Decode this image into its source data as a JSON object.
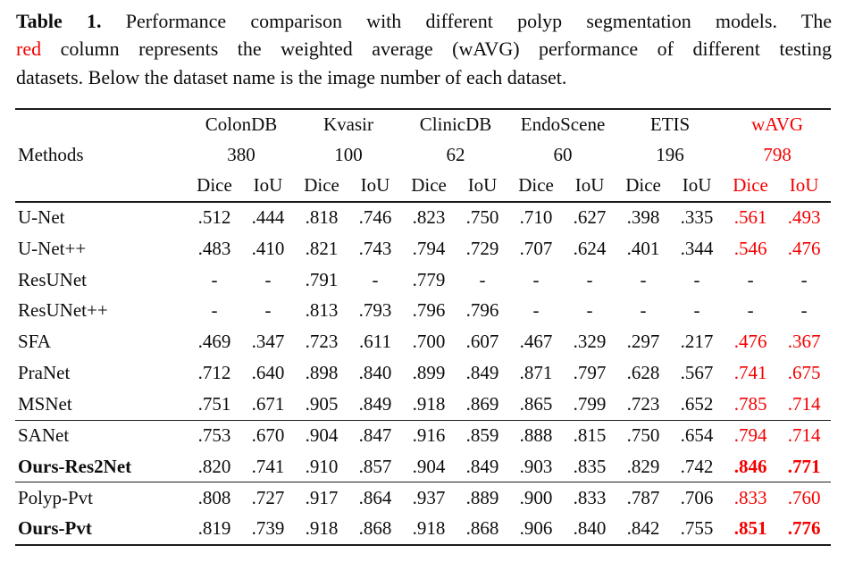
{
  "colors": {
    "accent_red": "#f40000",
    "text": "#0d0d0d"
  },
  "caption": {
    "line1_label": "Table 1.",
    "line1_rest": "Performance comparison with different polyp segmentation models. The",
    "line2_red_word": "red",
    "line2_rest": "column represents the weighted average (wAVG) performance of different testing",
    "line3": "datasets. Below the dataset name is the image number of each dataset."
  },
  "chart_data": {
    "type": "table",
    "title": "Performance comparison with different polyp segmentation models",
    "columns": [
      "Methods",
      "ColonDB Dice",
      "ColonDB IoU",
      "Kvasir Dice",
      "Kvasir IoU",
      "ClinicDB Dice",
      "ClinicDB IoU",
      "EndoScene Dice",
      "EndoScene IoU",
      "ETIS Dice",
      "ETIS IoU",
      "wAVG Dice",
      "wAVG IoU"
    ],
    "dataset_image_counts": {
      "ColonDB": 380,
      "Kvasir": 100,
      "ClinicDB": 62,
      "EndoScene": 60,
      "ETIS": 196,
      "wAVG": 798
    }
  },
  "table": {
    "methods_header": "Methods",
    "datasets": [
      {
        "name": "ColonDB",
        "count": "380",
        "red": false
      },
      {
        "name": "Kvasir",
        "count": "100",
        "red": false
      },
      {
        "name": "ClinicDB",
        "count": "62",
        "red": false
      },
      {
        "name": "EndoScene",
        "count": "60",
        "red": false
      },
      {
        "name": "ETIS",
        "count": "196",
        "red": false
      },
      {
        "name": "wAVG",
        "count": "798",
        "red": true
      }
    ],
    "subheaders": [
      "Dice",
      "IoU"
    ],
    "rows": [
      {
        "method": "U-Net",
        "bold": false,
        "rule_above": false,
        "values": [
          ".512",
          ".444",
          ".818",
          ".746",
          ".823",
          ".750",
          ".710",
          ".627",
          ".398",
          ".335",
          ".561",
          ".493"
        ]
      },
      {
        "method": "U-Net++",
        "bold": false,
        "rule_above": false,
        "values": [
          ".483",
          ".410",
          ".821",
          ".743",
          ".794",
          ".729",
          ".707",
          ".624",
          ".401",
          ".344",
          ".546",
          ".476"
        ]
      },
      {
        "method": "ResUNet",
        "bold": false,
        "rule_above": false,
        "values": [
          "-",
          "-",
          ".791",
          "-",
          ".779",
          "-",
          "-",
          "-",
          "-",
          "-",
          "-",
          "-"
        ],
        "dashes_black": true
      },
      {
        "method": "ResUNet++",
        "bold": false,
        "rule_above": false,
        "values": [
          "-",
          "-",
          ".813",
          ".793",
          ".796",
          ".796",
          "-",
          "-",
          "-",
          "-",
          "-",
          "-"
        ],
        "dashes_black": true
      },
      {
        "method": "SFA",
        "bold": false,
        "rule_above": false,
        "values": [
          ".469",
          ".347",
          ".723",
          ".611",
          ".700",
          ".607",
          ".467",
          ".329",
          ".297",
          ".217",
          ".476",
          ".367"
        ]
      },
      {
        "method": "PraNet",
        "bold": false,
        "rule_above": false,
        "values": [
          ".712",
          ".640",
          ".898",
          ".840",
          ".899",
          ".849",
          ".871",
          ".797",
          ".628",
          ".567",
          ".741",
          ".675"
        ]
      },
      {
        "method": "MSNet",
        "bold": false,
        "rule_above": false,
        "values": [
          ".751",
          ".671",
          ".905",
          ".849",
          ".918",
          ".869",
          ".865",
          ".799",
          ".723",
          ".652",
          ".785",
          ".714"
        ]
      },
      {
        "method": "SANet",
        "bold": false,
        "rule_above": true,
        "values": [
          ".753",
          ".670",
          ".904",
          ".847",
          ".916",
          ".859",
          ".888",
          ".815",
          ".750",
          ".654",
          ".794",
          ".714"
        ]
      },
      {
        "method": "Ours-Res2Net",
        "bold": true,
        "rule_above": false,
        "values": [
          ".820",
          ".741",
          ".910",
          ".857",
          ".904",
          ".849",
          ".903",
          ".835",
          ".829",
          ".742",
          ".846",
          ".771"
        ]
      },
      {
        "method": "Polyp-Pvt",
        "bold": false,
        "rule_above": true,
        "values": [
          ".808",
          ".727",
          ".917",
          ".864",
          ".937",
          ".889",
          ".900",
          ".833",
          ".787",
          ".706",
          ".833",
          ".760"
        ]
      },
      {
        "method": "Ours-Pvt",
        "bold": true,
        "rule_above": false,
        "values": [
          ".819",
          ".739",
          ".918",
          ".868",
          ".918",
          ".868",
          ".906",
          ".840",
          ".842",
          ".755",
          ".851",
          ".776"
        ]
      }
    ]
  }
}
